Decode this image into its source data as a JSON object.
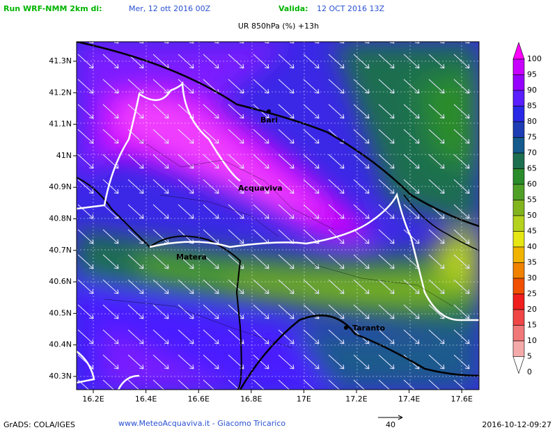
{
  "header": {
    "run_label": "Run WRF-NMM 2km di:",
    "run_date": "Mer, 12 ott 2016 00Z",
    "valid_label": "Valida:",
    "valid_date": "12 OCT 2016 13Z",
    "title": "UR 850hPa (%) +13h"
  },
  "map": {
    "lat_labels": [
      "41.3N",
      "41.2N",
      "41.1N",
      "41N",
      "40.9N",
      "40.8N",
      "40.7N",
      "40.6N",
      "40.5N",
      "40.4N",
      "40.3N"
    ],
    "lon_labels": [
      "16.2E",
      "16.4E",
      "16.6E",
      "16.8E",
      "17E",
      "17.2E",
      "17.4E",
      "17.6E"
    ],
    "cities": [
      "Bari",
      "Acquaviva",
      "Matera",
      "Taranto"
    ]
  },
  "colorbar": {
    "labels": [
      "100",
      "95",
      "90",
      "85",
      "80",
      "75",
      "70",
      "65",
      "60",
      "55",
      "50",
      "45",
      "40",
      "35",
      "30",
      "25",
      "20",
      "15",
      "10",
      "5",
      "0"
    ],
    "colors": [
      "#ff00ff",
      "#c800ff",
      "#9600ff",
      "#5a1eff",
      "#2828e6",
      "#1e3cb4",
      "#145a8c",
      "#1e6e50",
      "#2a8c2a",
      "#50a028",
      "#82b41e",
      "#b4d21e",
      "#e6e614",
      "#f0b400",
      "#f08200",
      "#f05000",
      "#f01e1e",
      "#f04646",
      "#f07878",
      "#f5aaaa",
      "#ffffff"
    ]
  },
  "footer": {
    "software": "GrADS: COLA/IGES",
    "credit": "www.MeteoAcquaviva.it - Giacomo Tricarico",
    "vector_scale": "40",
    "timestamp": "2016-10-12-09:27"
  }
}
